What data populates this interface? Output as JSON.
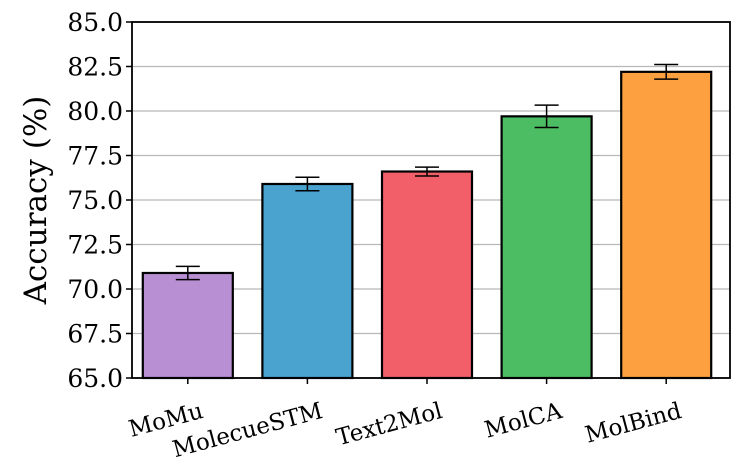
{
  "chart_data": {
    "type": "bar",
    "title": "",
    "xlabel": "",
    "ylabel": "Accuracy (%)",
    "ylim": [
      65.0,
      85.0
    ],
    "yticks": [
      "65.0",
      "67.5",
      "70.0",
      "72.5",
      "75.0",
      "77.5",
      "80.0",
      "82.5",
      "85.0"
    ],
    "grid": "y",
    "categories": [
      "MoMu",
      "MolecueSTM",
      "Text2Mol",
      "MolCA",
      "MolBind"
    ],
    "values": [
      70.9,
      75.9,
      76.6,
      79.7,
      82.2
    ],
    "errors": [
      0.37,
      0.38,
      0.25,
      0.63,
      0.41
    ],
    "colors": [
      "#b98fd4",
      "#4aa2cf",
      "#f25f68",
      "#4dbd63",
      "#fda040"
    ]
  }
}
